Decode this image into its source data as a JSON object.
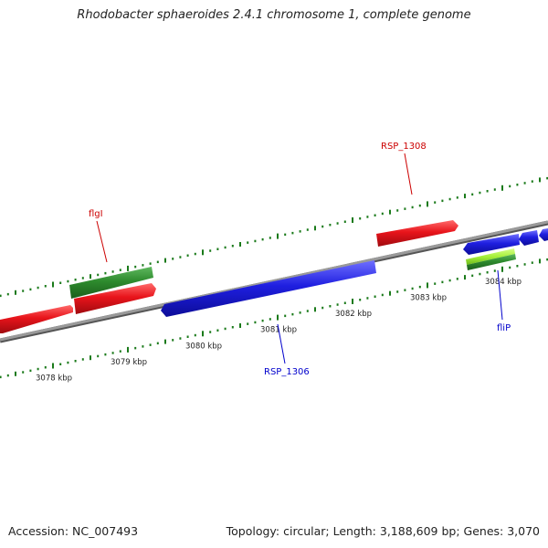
{
  "title": "Rhodobacter sphaeroides 2.4.1 chromosome 1, complete genome",
  "footer": {
    "accession": "Accession: NC_007493",
    "stats": "Topology: circular; Length: 3,188,609 bp; Genes: 3,070"
  },
  "colors": {
    "backbone": "#808080",
    "forward_gene": "#e8141b",
    "reverse_gene": "#1f1fe0",
    "feature_dark_green": "#2e8b2e",
    "feature_light_green": "#a6f03a",
    "tick": "#1a7a1a",
    "forward_label": "#cc0000",
    "reverse_label": "#0000cc"
  },
  "scale": {
    "tick_labels": [
      {
        "kbp": 3078,
        "text": "3078 kbp"
      },
      {
        "kbp": 3079,
        "text": "3079 kbp"
      },
      {
        "kbp": 3080,
        "text": "3080 kbp"
      },
      {
        "kbp": 3081,
        "text": "3081 kbp"
      },
      {
        "kbp": 3082,
        "text": "3082 kbp"
      },
      {
        "kbp": 3083,
        "text": "3083 kbp"
      },
      {
        "kbp": 3084,
        "text": "3084 kbp"
      }
    ],
    "minor_tick_kbp": 0.1
  },
  "features": [
    {
      "name": "flgI",
      "track": "forward",
      "color": "feature_dark_green",
      "start_kbp": 3078.78,
      "end_kbp": 3079.83
    },
    {
      "name": "",
      "track": "forward",
      "color": "forward_gene",
      "start_kbp": 3077.8,
      "end_kbp": 3078.7
    },
    {
      "name": "",
      "track": "forward",
      "color": "forward_gene",
      "start_kbp": 3078.78,
      "end_kbp": 3079.83
    },
    {
      "name": "RSP_1306",
      "track": "reverse",
      "color": "reverse_gene",
      "start_kbp": 3080.0,
      "end_kbp": 3082.84
    },
    {
      "name": "RSP_1308",
      "track": "forward",
      "color": "forward_gene",
      "start_kbp": 3082.85,
      "end_kbp": 3083.92
    },
    {
      "name": "fliP",
      "track": "reverse",
      "color": "reverse_gene",
      "start_kbp": 3083.95,
      "end_kbp": 3084.63
    },
    {
      "name": "",
      "track": "reverse",
      "color": "reverse_gene",
      "start_kbp": 3084.65,
      "end_kbp": 3084.9
    },
    {
      "name": "",
      "track": "reverse",
      "color": "reverse_gene",
      "start_kbp": 3084.92,
      "end_kbp": 3085.2
    }
  ],
  "labels": [
    {
      "text": "flgI",
      "color": "forward_label"
    },
    {
      "text": "RSP_1308",
      "color": "forward_label"
    },
    {
      "text": "RSP_1306",
      "color": "reverse_label"
    },
    {
      "text": "fliP",
      "color": "reverse_label"
    }
  ]
}
